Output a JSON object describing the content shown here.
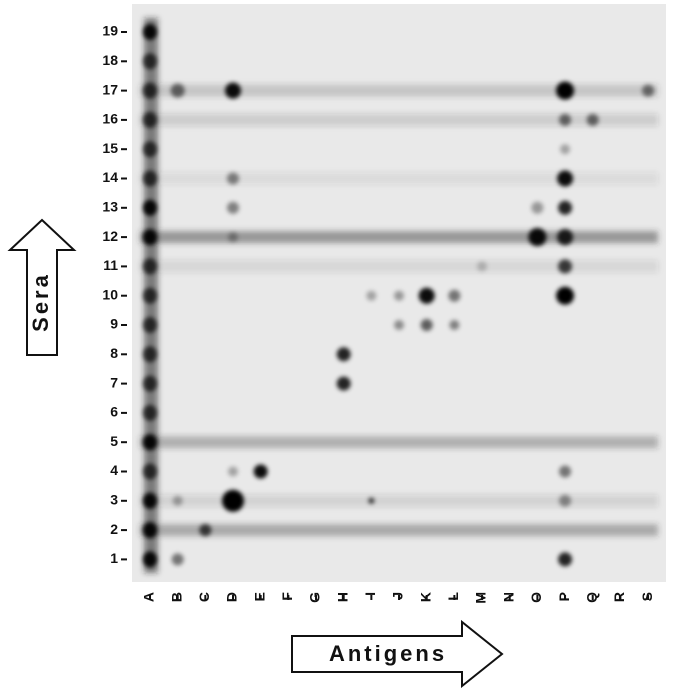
{
  "sera_label": "Sera",
  "antigens_label": "Antigens",
  "rows": {
    "labels": [
      "19",
      "18",
      "17",
      "16",
      "15",
      "14",
      "13",
      "12",
      "11",
      "10",
      "9",
      "8",
      "7",
      "6",
      "5",
      "4",
      "3",
      "2",
      "1"
    ]
  },
  "columns": {
    "labels": [
      "A",
      "B",
      "C",
      "D",
      "E",
      "F",
      "G",
      "H",
      "I",
      "J",
      "K",
      "L",
      "M",
      "N",
      "O",
      "P",
      "Q",
      "R",
      "S"
    ]
  }
}
